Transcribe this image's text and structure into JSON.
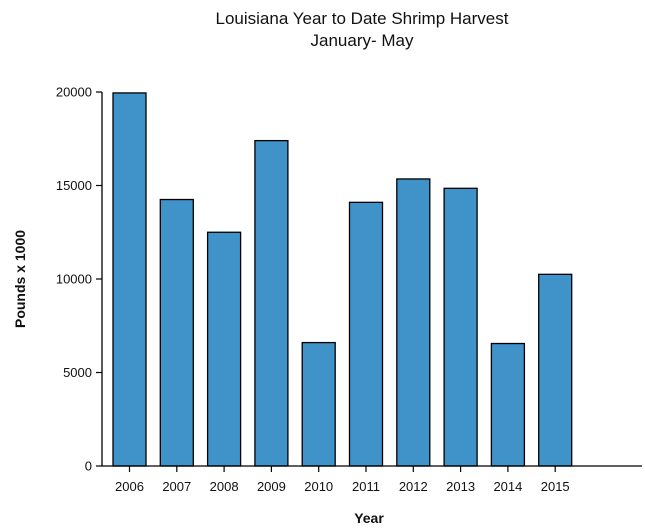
{
  "chart_data": {
    "type": "bar",
    "title_lines": [
      "Louisiana Year to Date Shrimp Harvest",
      "January- May"
    ],
    "xlabel": "Year",
    "ylabel": "Pounds x 1000",
    "categories": [
      "2006",
      "2007",
      "2008",
      "2009",
      "2010",
      "2011",
      "2012",
      "2013",
      "2014",
      "2015"
    ],
    "values": [
      19950,
      14250,
      12500,
      17400,
      6600,
      14100,
      15350,
      14850,
      6550,
      10250
    ],
    "ylim": [
      0,
      20000
    ],
    "yticks": [
      0,
      5000,
      10000,
      15000,
      20000
    ],
    "ytick_labels": [
      "0",
      "5000",
      "10000",
      "15000",
      "20000"
    ],
    "grid": false,
    "bar_color": "#3f93c9"
  }
}
